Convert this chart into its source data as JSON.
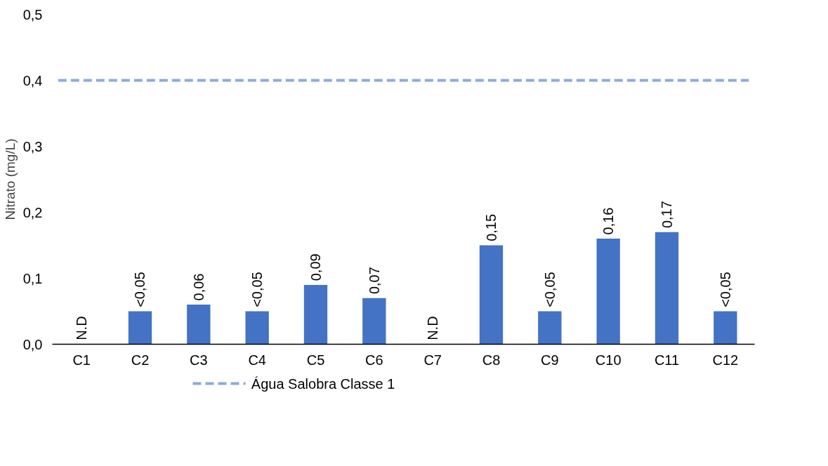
{
  "chart_data": {
    "type": "bar",
    "ylabel": "Nitrato (mg/L)",
    "categories": [
      "C1",
      "C2",
      "C3",
      "C4",
      "C5",
      "C6",
      "C7",
      "C8",
      "C9",
      "C10",
      "C11",
      "C12"
    ],
    "values": [
      null,
      0.05,
      0.06,
      0.05,
      0.09,
      0.07,
      null,
      0.15,
      0.05,
      0.16,
      0.17,
      0.05
    ],
    "value_labels": [
      "N.D",
      "<0,05",
      "0,06",
      "<0,05",
      "0,09",
      "0,07",
      "N.D",
      "0,15",
      "<0,05",
      "0,16",
      "0,17",
      "<0,05"
    ],
    "color": "#4472c4",
    "ylim": [
      0,
      0.5
    ],
    "yticks": [
      {
        "value": 0,
        "label": "0,0"
      },
      {
        "value": 0.1,
        "label": "0,1"
      },
      {
        "value": 0.2,
        "label": "0,2"
      },
      {
        "value": 0.3,
        "label": "0,3"
      },
      {
        "value": 0.4,
        "label": "0,4"
      },
      {
        "value": 0.5,
        "label": "0,5"
      }
    ],
    "ref_lines": [
      {
        "axis": "y",
        "value": 0.4,
        "label": "Água Salobra Classe 1",
        "color": "#8faadc",
        "line_style": "dashed"
      }
    ],
    "legend": "bottom",
    "grid": false
  }
}
